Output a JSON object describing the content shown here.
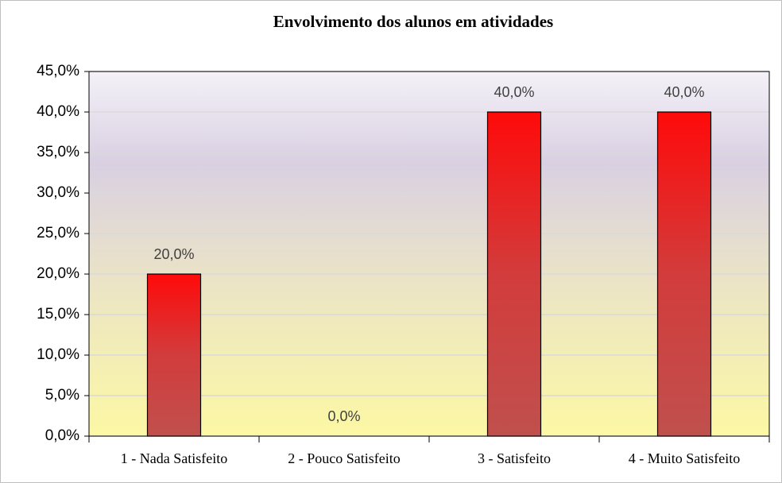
{
  "chart_data": {
    "type": "bar",
    "title": "Envolvimento dos alunos em atividades",
    "categories": [
      "1 - Nada Satisfeito",
      "2 - Pouco Satisfeito",
      "3 - Satisfeito",
      "4 - Muito Satisfeito"
    ],
    "values": [
      20,
      0,
      40,
      40
    ],
    "value_labels": [
      "20,0%",
      "0,0%",
      "40,0%",
      "40,0%"
    ],
    "color": "#e8191a",
    "ylim": [
      0,
      45
    ],
    "yticks": [
      {
        "value": 0,
        "label": "0,0%"
      },
      {
        "value": 5,
        "label": "5,0%"
      },
      {
        "value": 10,
        "label": "10,0%"
      },
      {
        "value": 15,
        "label": "15,0%"
      },
      {
        "value": 20,
        "label": "20,0%"
      },
      {
        "value": 25,
        "label": "25,0%"
      },
      {
        "value": 30,
        "label": "30,0%"
      },
      {
        "value": 35,
        "label": "35,0%"
      },
      {
        "value": 40,
        "label": "40,0%"
      },
      {
        "value": 45,
        "label": "45,0%"
      }
    ],
    "grid": true
  }
}
